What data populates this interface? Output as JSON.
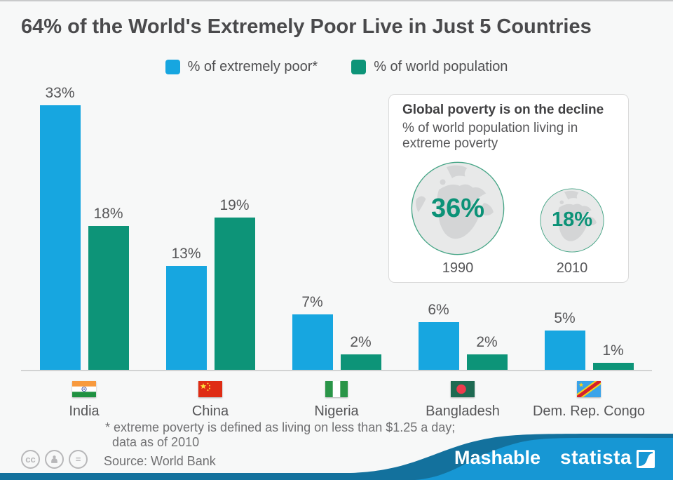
{
  "title": "64% of the World's Extremely Poor Live in Just 5 Countries",
  "chart_data": {
    "type": "bar",
    "categories": [
      "India",
      "China",
      "Nigeria",
      "Bangladesh",
      "Dem. Rep. Congo"
    ],
    "series": [
      {
        "name": "% of extremely poor*",
        "color": "#17a6e0",
        "values": [
          33,
          13,
          7,
          6,
          5
        ]
      },
      {
        "name": "% of world population",
        "color": "#0d9478",
        "values": [
          18,
          19,
          2,
          2,
          1
        ]
      }
    ],
    "value_suffix": "%",
    "title": "64% of the World's Extremely Poor Live in Just 5 Countries",
    "xlabel": "",
    "ylabel": "",
    "ylim": [
      0,
      35
    ],
    "grid": false,
    "legend_position": "top"
  },
  "inset": {
    "title": "Global poverty is on the decline",
    "subtitle": "% of world population living in\nextreme poverty",
    "globes": [
      {
        "value": "36%",
        "year": "1990"
      },
      {
        "value": "18%",
        "year": "2010"
      }
    ]
  },
  "footnote": {
    "line1": "* extreme poverty is defined as living on less than $1.25 a day;",
    "line2": "data as of 2010",
    "source": "Source: World Bank"
  },
  "license": {
    "cc": "cc",
    "nd": "="
  },
  "brands": {
    "primary": "Mashable",
    "secondary": "statista"
  },
  "colors": {
    "background": "#f7f8f8",
    "bar_blue": "#17a6e0",
    "bar_green": "#0d9478",
    "accent_green_text": "#0b9277",
    "wave_light": "#1797d4",
    "wave_dark": "#13719d",
    "text_dark": "#4a4a4c",
    "text_gray": "#565658"
  }
}
